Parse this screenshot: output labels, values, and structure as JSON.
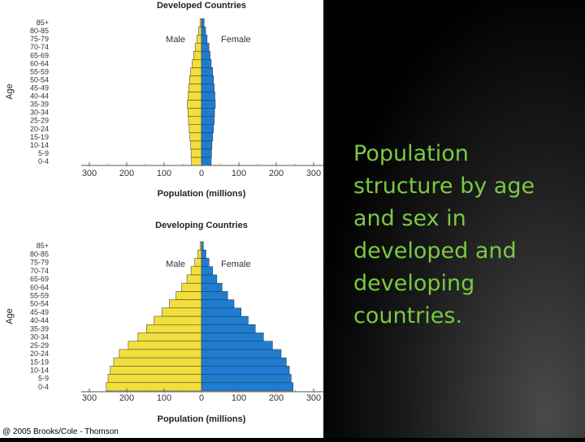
{
  "caption": "Population structure  by age and sex in developed and developing countries.",
  "copyright": "@ 2005 Brooks/Cole - Thomson",
  "colors": {
    "male": "#f2df3c",
    "female": "#1e7dd0",
    "caption": "#7ac943"
  },
  "chart_data": [
    {
      "type": "bar",
      "orientation": "horizontal-pyramid",
      "title": "Developed Countries",
      "xlabel": "Population (millions)",
      "ylabel": "Age",
      "xlim": [
        -300,
        300
      ],
      "x_ticks": [
        "300",
        "200",
        "100",
        "0",
        "100",
        "200",
        "300"
      ],
      "labels": {
        "male": "Male",
        "female": "Female"
      },
      "categories": [
        "0-4",
        "5-9",
        "10-14",
        "15-19",
        "20-24",
        "25-29",
        "30-34",
        "35-39",
        "40-44",
        "45-49",
        "50-54",
        "55-59",
        "60-64",
        "65-69",
        "70-74",
        "75-79",
        "80-85",
        "85+"
      ],
      "series": [
        {
          "name": "Male",
          "values": [
            27,
            28,
            29,
            31,
            33,
            35,
            36,
            38,
            36,
            34,
            32,
            29,
            25,
            21,
            17,
            12,
            8,
            4
          ]
        },
        {
          "name": "Female",
          "values": [
            26,
            27,
            28,
            30,
            32,
            34,
            35,
            37,
            36,
            34,
            32,
            30,
            26,
            23,
            20,
            15,
            11,
            7
          ]
        }
      ]
    },
    {
      "type": "bar",
      "orientation": "horizontal-pyramid",
      "title": "Developing Countries",
      "xlabel": "Population (millions)",
      "ylabel": "Age",
      "xlim": [
        -300,
        300
      ],
      "x_ticks": [
        "300",
        "200",
        "100",
        "0",
        "100",
        "200",
        "300"
      ],
      "labels": {
        "male": "Male",
        "female": "Female"
      },
      "categories": [
        "0-4",
        "5-9",
        "10-14",
        "15-19",
        "20-24",
        "25-29",
        "30-34",
        "35-39",
        "40-44",
        "45-49",
        "50-54",
        "55-59",
        "60-64",
        "65-69",
        "70-74",
        "75-79",
        "80-85",
        "85+"
      ],
      "series": [
        {
          "name": "Male",
          "values": [
            255,
            250,
            244,
            235,
            220,
            196,
            170,
            147,
            127,
            106,
            86,
            68,
            53,
            39,
            28,
            18,
            10,
            4
          ]
        },
        {
          "name": "Female",
          "values": [
            245,
            240,
            235,
            227,
            213,
            190,
            166,
            144,
            125,
            106,
            87,
            70,
            55,
            41,
            30,
            20,
            12,
            5
          ]
        }
      ]
    }
  ]
}
